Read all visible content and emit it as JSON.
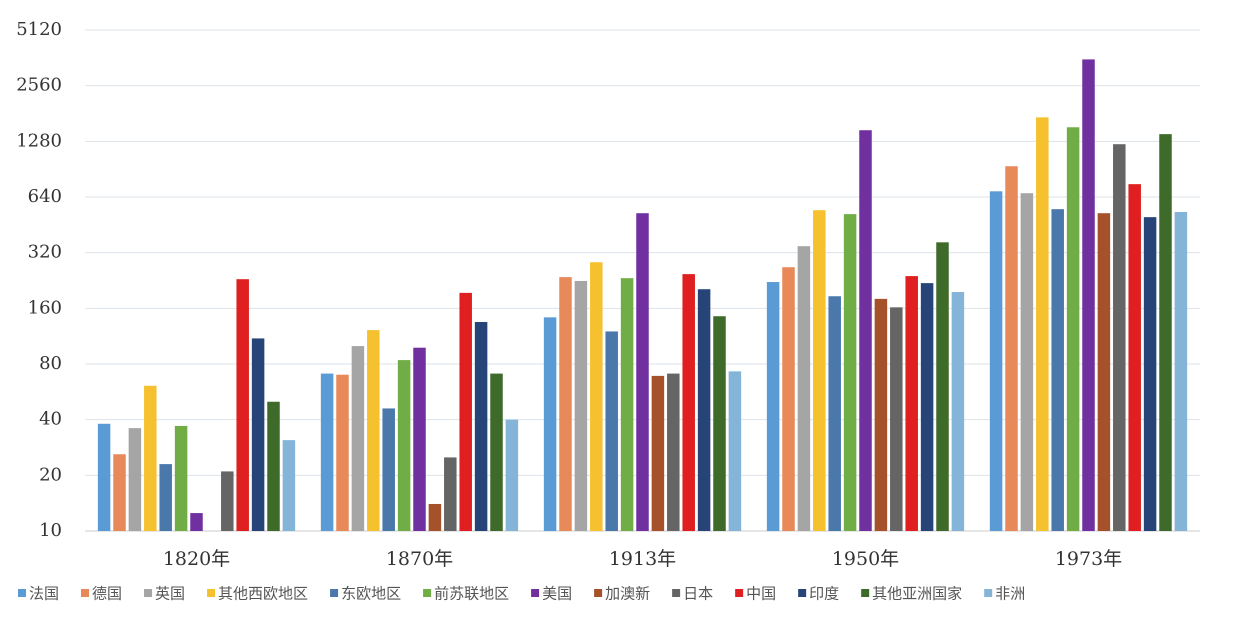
{
  "chart_data": {
    "type": "bar",
    "categories": [
      "1820年",
      "1870年",
      "1913年",
      "1950年",
      "1973年"
    ],
    "series": [
      {
        "name": "法国",
        "color": "#5b9bd5",
        "values": [
          38,
          71,
          143,
          222,
          687
        ]
      },
      {
        "name": "德国",
        "color": "#e8895a",
        "values": [
          26,
          70,
          236,
          267,
          939
        ]
      },
      {
        "name": "英国",
        "color": "#a5a5a5",
        "values": [
          36,
          100,
          225,
          347,
          671
        ]
      },
      {
        "name": "其他西欧地区",
        "color": "#f5c12e",
        "values": [
          61,
          122,
          284,
          543,
          1725
        ]
      },
      {
        "name": "东欧地区",
        "color": "#4a78ab",
        "values": [
          23,
          46,
          120,
          186,
          550
        ]
      },
      {
        "name": "前苏联地区",
        "color": "#70ad47",
        "values": [
          37,
          84,
          233,
          517,
          1525
        ]
      },
      {
        "name": "美国",
        "color": "#7030a0",
        "values": [
          12.5,
          98,
          523,
          1470,
          3550
        ]
      },
      {
        "name": "加澳新",
        "color": "#a5522a",
        "values": [
          null,
          14,
          69,
          180,
          523
        ]
      },
      {
        "name": "日本",
        "color": "#656565",
        "values": [
          21,
          25,
          71,
          162,
          1235
        ]
      },
      {
        "name": "中国",
        "color": "#e02020",
        "values": [
          230,
          194,
          245,
          239,
          751
        ]
      },
      {
        "name": "印度",
        "color": "#264478",
        "values": [
          110,
          135,
          203,
          219,
          498
        ]
      },
      {
        "name": "其他亚洲国家",
        "color": "#3e6b2a",
        "values": [
          50,
          71,
          145,
          364,
          1400
        ]
      },
      {
        "name": "非洲",
        "color": "#84b4d8",
        "values": [
          31,
          40,
          73,
          196,
          531
        ]
      }
    ],
    "ylim": [
      10,
      5120
    ],
    "yticks": [
      10,
      20,
      40,
      80,
      160,
      320,
      640,
      1280,
      2560,
      5120
    ],
    "log_scale": true,
    "grid": true,
    "legend": "bottom"
  }
}
